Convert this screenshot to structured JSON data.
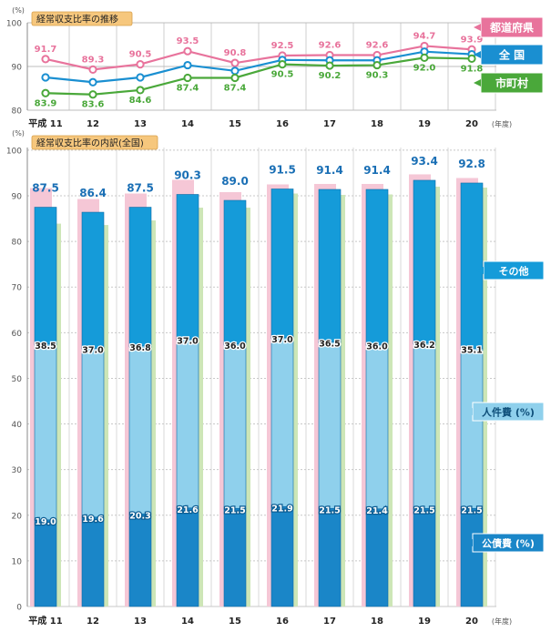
{
  "chart_data": [
    {
      "type": "line",
      "title": "経常収支比率の推移",
      "unit": "(%)",
      "x_unit": "(年度)",
      "categories": [
        "平成 11",
        "12",
        "13",
        "14",
        "15",
        "16",
        "17",
        "18",
        "19",
        "20"
      ],
      "ylim": [
        80,
        100
      ],
      "yticks": [
        80,
        90,
        100
      ],
      "legend_position": "right",
      "series": [
        {
          "name": "都道府県",
          "color": "#e8739c",
          "values": [
            91.7,
            89.3,
            90.5,
            93.5,
            90.8,
            92.5,
            92.6,
            92.6,
            94.7,
            93.9
          ]
        },
        {
          "name": "全 国",
          "color": "#1a8fd1",
          "values": [
            null,
            null,
            null,
            null,
            null,
            null,
            null,
            null,
            null,
            null
          ]
        },
        {
          "name": "市町村",
          "color": "#4aa83a",
          "values": [
            83.9,
            83.6,
            84.6,
            87.4,
            87.4,
            90.5,
            90.2,
            90.3,
            92.0,
            91.8
          ]
        }
      ]
    },
    {
      "type": "bar",
      "title": "経常収支比率の内訳(全国)",
      "unit": "(%)",
      "x_unit": "(年度)",
      "categories": [
        "平成 11",
        "12",
        "13",
        "14",
        "15",
        "16",
        "17",
        "18",
        "19",
        "20"
      ],
      "ylim": [
        0,
        100
      ],
      "yticks": [
        0,
        10,
        20,
        30,
        40,
        50,
        60,
        70,
        80,
        90,
        100
      ],
      "totals": [
        87.5,
        86.4,
        87.5,
        90.3,
        89.0,
        91.5,
        91.4,
        91.4,
        93.4,
        92.8
      ],
      "prefecture_totals": [
        91.7,
        89.3,
        90.5,
        93.5,
        90.8,
        92.5,
        92.6,
        92.6,
        94.7,
        93.9
      ],
      "municipal_totals": [
        83.9,
        83.6,
        84.6,
        87.4,
        87.4,
        90.5,
        90.2,
        90.3,
        92.0,
        91.8
      ],
      "series": [
        {
          "name": "公債費 (%)",
          "color": "#1a86c8",
          "values": [
            19.0,
            19.6,
            20.3,
            21.6,
            21.5,
            21.9,
            21.5,
            21.4,
            21.5,
            21.5
          ]
        },
        {
          "name": "人件費 (%)",
          "color": "#8fd0ec",
          "values": [
            38.5,
            37.0,
            36.8,
            37.0,
            36.0,
            37.0,
            36.5,
            36.0,
            36.2,
            35.1
          ]
        },
        {
          "name": "その他",
          "color": "#159bd9",
          "values": [
            30.0,
            29.8,
            30.4,
            31.7,
            31.5,
            32.6,
            33.4,
            34.0,
            35.7,
            36.2
          ]
        }
      ]
    }
  ]
}
